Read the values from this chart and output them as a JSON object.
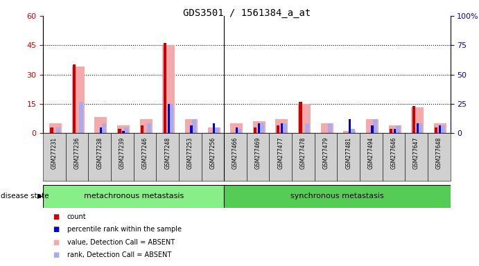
{
  "title": "GDS3501 / 1561384_a_at",
  "samples": [
    "GSM277231",
    "GSM277236",
    "GSM277238",
    "GSM277239",
    "GSM277246",
    "GSM277248",
    "GSM277253",
    "GSM277256",
    "GSM277466",
    "GSM277469",
    "GSM277477",
    "GSM277478",
    "GSM277479",
    "GSM277481",
    "GSM277494",
    "GSM277646",
    "GSM277647",
    "GSM277648"
  ],
  "count_red": [
    3,
    35,
    0,
    2,
    4,
    46,
    0,
    0,
    0,
    3,
    4,
    16,
    0,
    0,
    0,
    2,
    14,
    3
  ],
  "percentile_blue": [
    0,
    0,
    3,
    1,
    0,
    15,
    4,
    5,
    3,
    5,
    5,
    0,
    0,
    7,
    4,
    2,
    5,
    4
  ],
  "value_absent_pink": [
    5,
    34,
    8,
    4,
    7,
    45,
    7,
    3,
    5,
    6,
    7,
    15,
    5,
    1,
    7,
    4,
    13,
    5
  ],
  "rank_absent_lavender": [
    3,
    16,
    5,
    3,
    5,
    15,
    7,
    3,
    2,
    5,
    5,
    5,
    5,
    2,
    7,
    4,
    5,
    4
  ],
  "group1_label": "metachronous metastasis",
  "group2_label": "synchronous metastasis",
  "group1_count": 8,
  "group2_count": 10,
  "ylim_left": [
    0,
    60
  ],
  "ylim_right": [
    0,
    100
  ],
  "yticks_left": [
    0,
    15,
    30,
    45,
    60
  ],
  "yticks_right": [
    0,
    25,
    50,
    75,
    100
  ],
  "ytick_labels_right": [
    "0",
    "25",
    "50",
    "75",
    "100%"
  ],
  "color_red": "#cc0000",
  "color_blue": "#0000cc",
  "color_pink": "#f4aaaa",
  "color_lavender": "#aaaaee",
  "color_green_light": "#88ee88",
  "color_green_dark": "#55cc55",
  "bg_xticklabels": "#d0d0d0",
  "legend_items": [
    "count",
    "percentile rank within the sample",
    "value, Detection Call = ABSENT",
    "rank, Detection Call = ABSENT"
  ],
  "legend_colors": [
    "#cc0000",
    "#0000cc",
    "#f4aaaa",
    "#aaaaee"
  ],
  "disease_state_label": "disease state",
  "dotted_line_color": "#000000"
}
